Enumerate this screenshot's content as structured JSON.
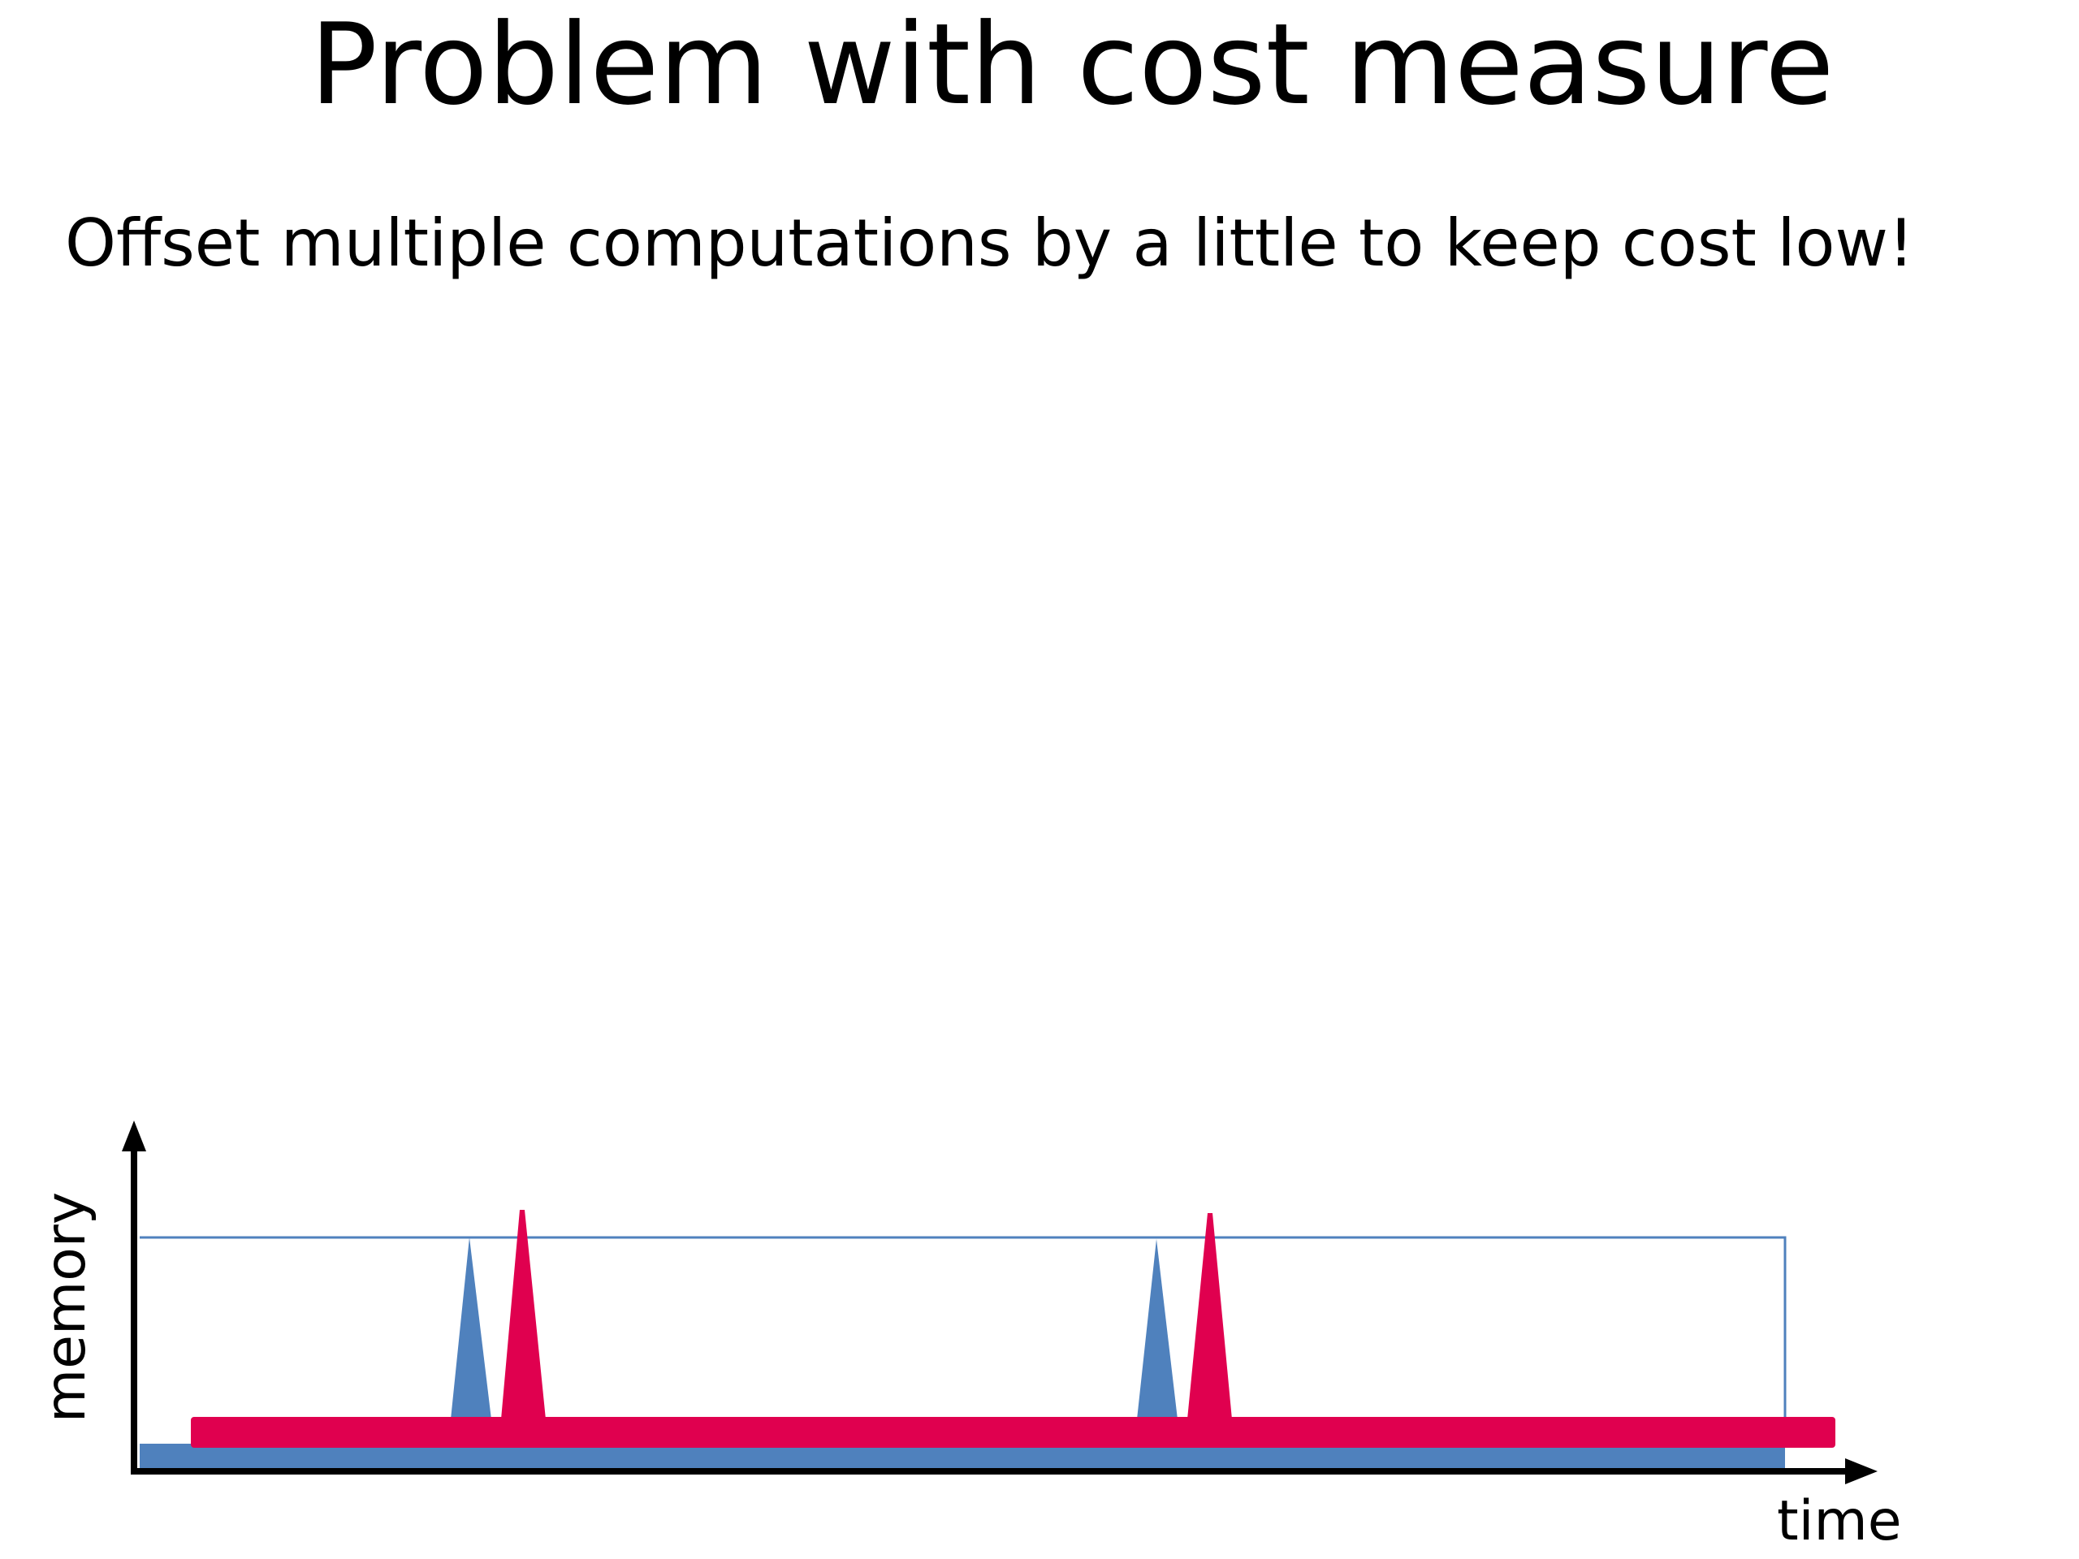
{
  "slide": {
    "title": "Problem with cost measure",
    "subtitle": "Offset multiple computations by a little to keep cost low!"
  },
  "diagram": {
    "x_axis_label": "time",
    "y_axis_label": "memory",
    "colors": {
      "computation_a": "#4f81bd",
      "computation_b": "#e0004f",
      "axis": "#000000",
      "peak_outline": "#4f81bd"
    }
  }
}
